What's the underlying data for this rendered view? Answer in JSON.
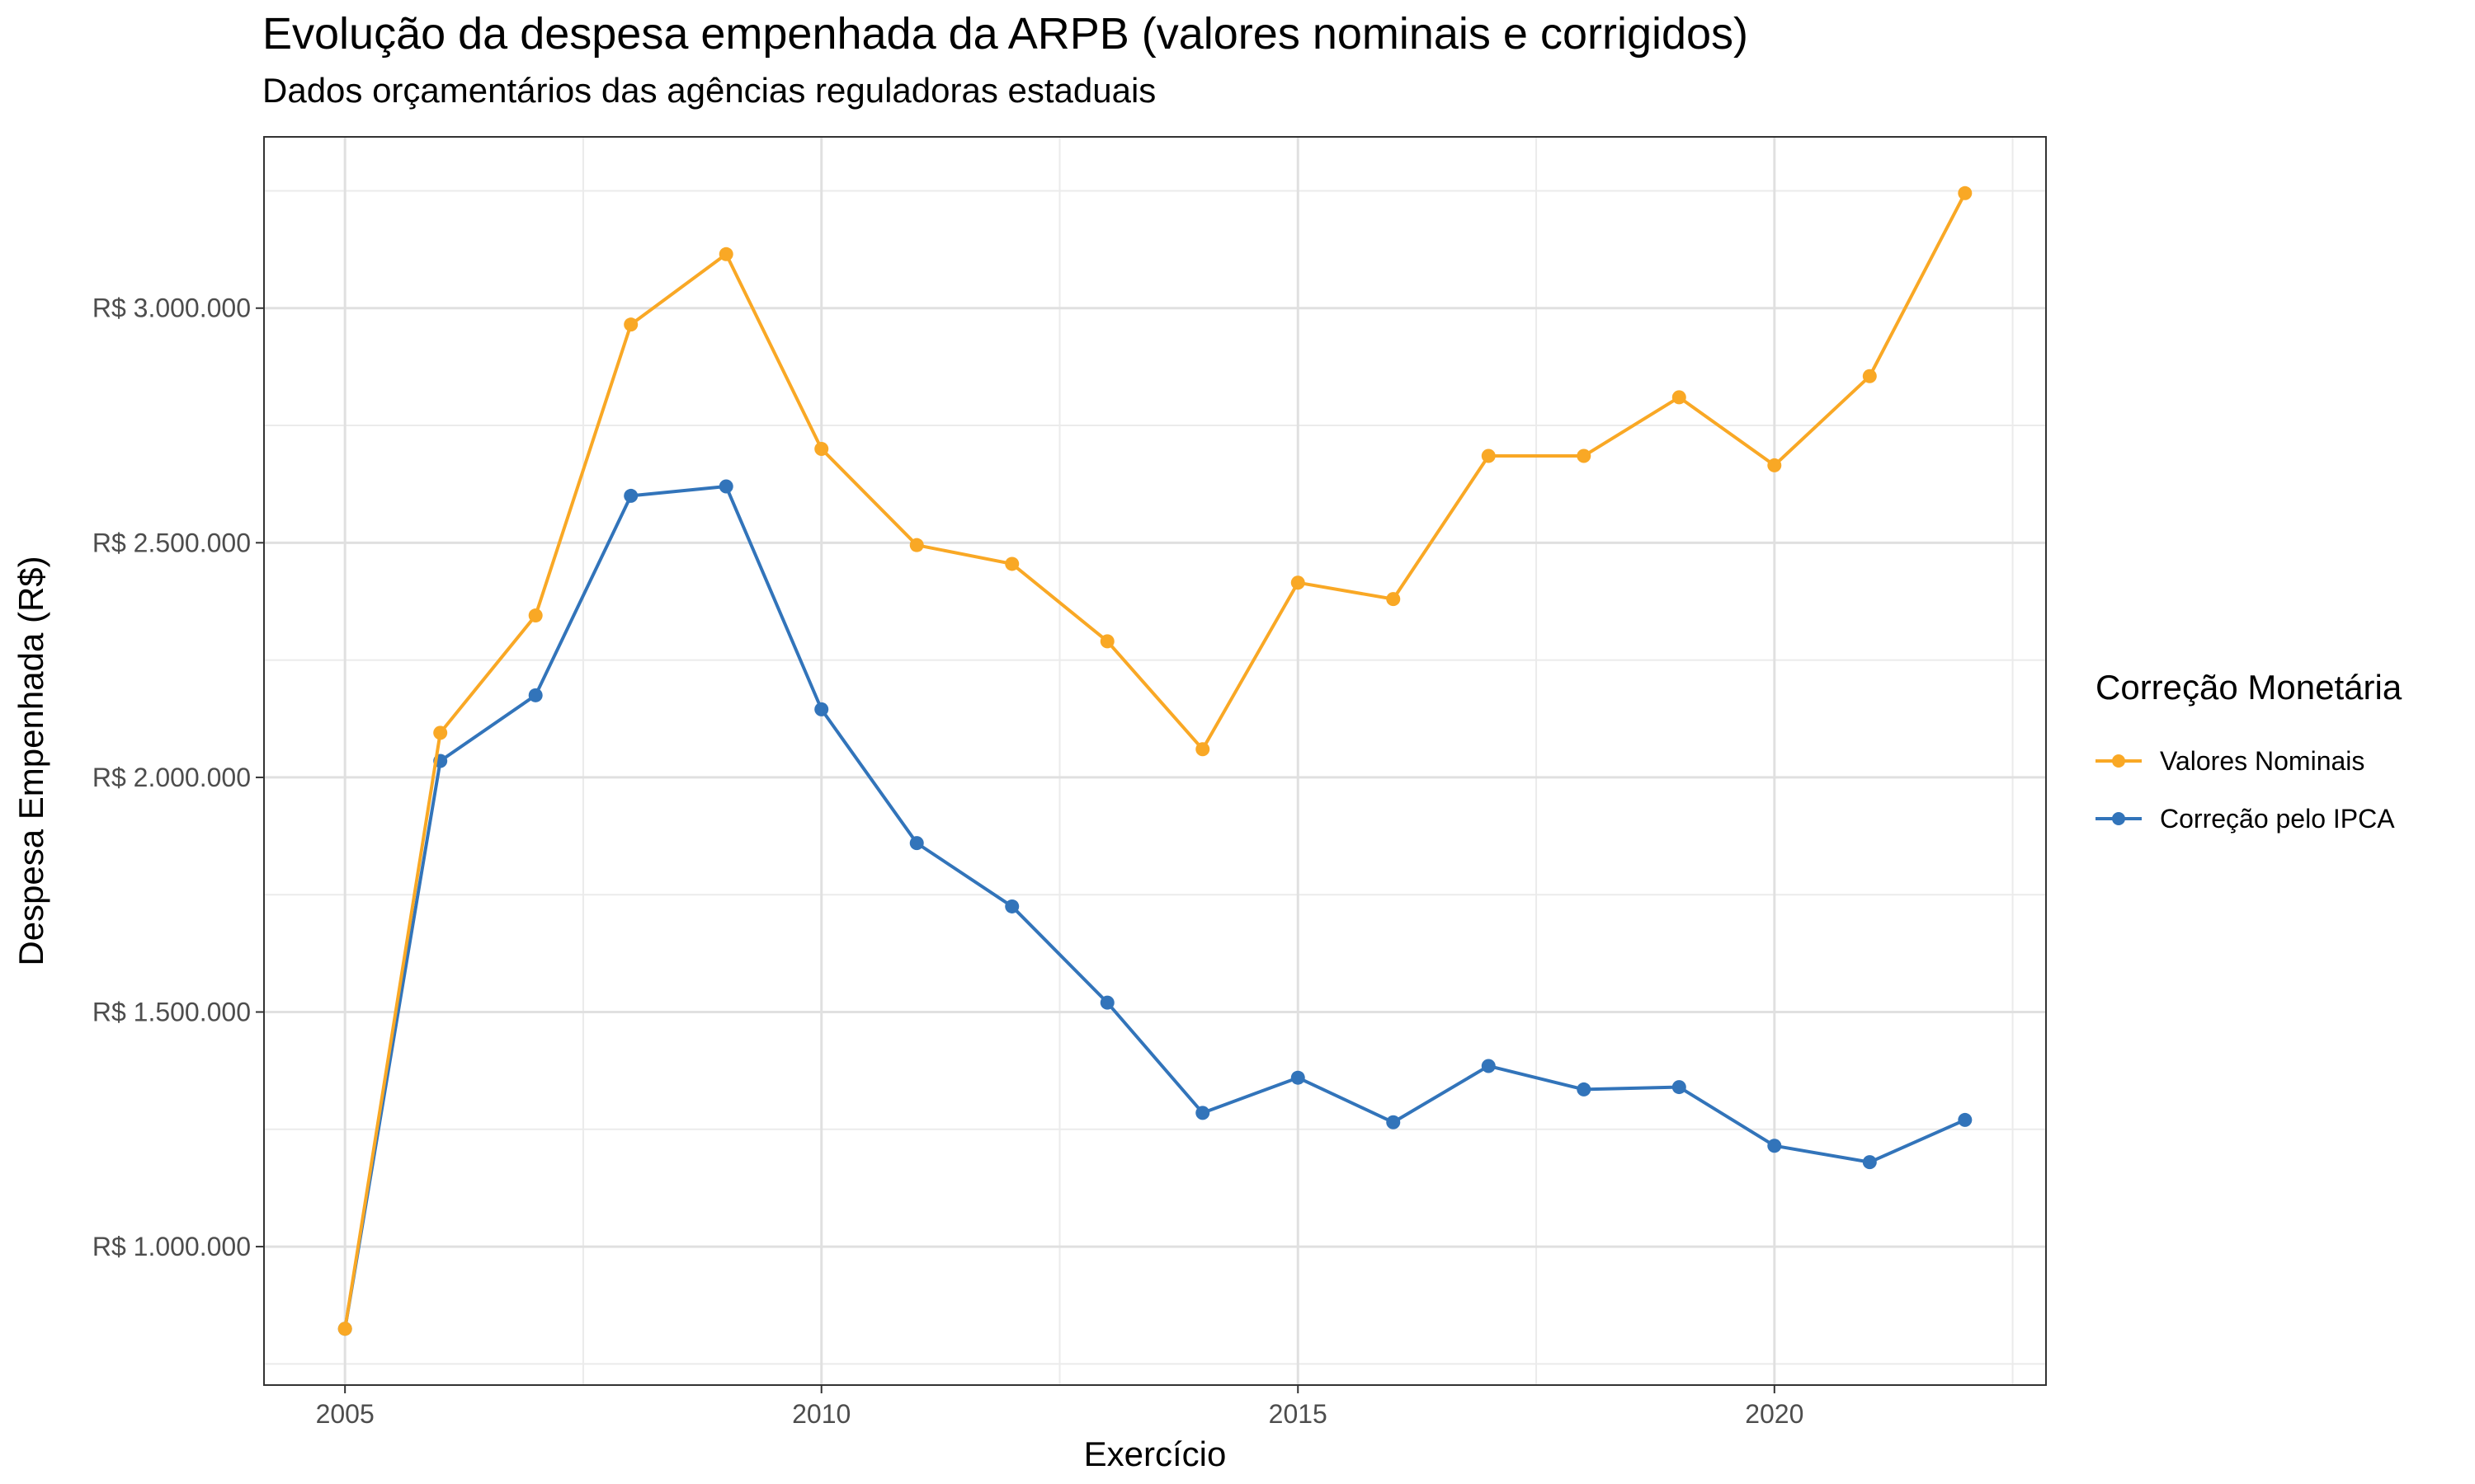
{
  "chart_data": {
    "type": "line",
    "title": "Evolução da despesa empenhada da ARPB (valores nominais e corrigidos)",
    "subtitle": "Dados orçamentários das agências reguladoras estaduais",
    "xlabel": "Exercício",
    "ylabel": "Despesa Empenhada (R$)",
    "x": [
      2005,
      2006,
      2007,
      2008,
      2009,
      2010,
      2011,
      2012,
      2013,
      2014,
      2015,
      2016,
      2017,
      2018,
      2019,
      2020,
      2021,
      2022
    ],
    "series": [
      {
        "name": "Valores Nominais",
        "color": "#F9A825",
        "values": [
          825000,
          2095000,
          2345000,
          2965000,
          3115000,
          2700000,
          2495000,
          2455000,
          2290000,
          2060000,
          2415000,
          2380000,
          2685000,
          2685000,
          2810000,
          2665000,
          2855000,
          3245000
        ]
      },
      {
        "name": "Correção pelo IPCA",
        "color": "#3274BA",
        "values": [
          825000,
          2035000,
          2175000,
          2600000,
          2620000,
          2145000,
          1860000,
          1725000,
          1520000,
          1285000,
          1360000,
          1265000,
          1385000,
          1335000,
          1340000,
          1215000,
          1180000,
          1270000
        ]
      }
    ],
    "xlim": [
      2004.15,
      2022.85
    ],
    "ylim": [
      705000,
      3365000
    ],
    "x_ticks": [
      2005,
      2010,
      2015,
      2020
    ],
    "x_tick_labels": [
      "2005",
      "2010",
      "2015",
      "2020"
    ],
    "y_ticks": [
      1000000,
      1500000,
      2000000,
      2500000,
      3000000
    ],
    "y_tick_labels": [
      "R$ 1.000.000",
      "R$ 1.500.000",
      "R$ 2.000.000",
      "R$ 2.500.000",
      "R$ 3.000.000"
    ],
    "grid": true,
    "legend_title": "Correção Monetária",
    "legend_position": "right"
  }
}
